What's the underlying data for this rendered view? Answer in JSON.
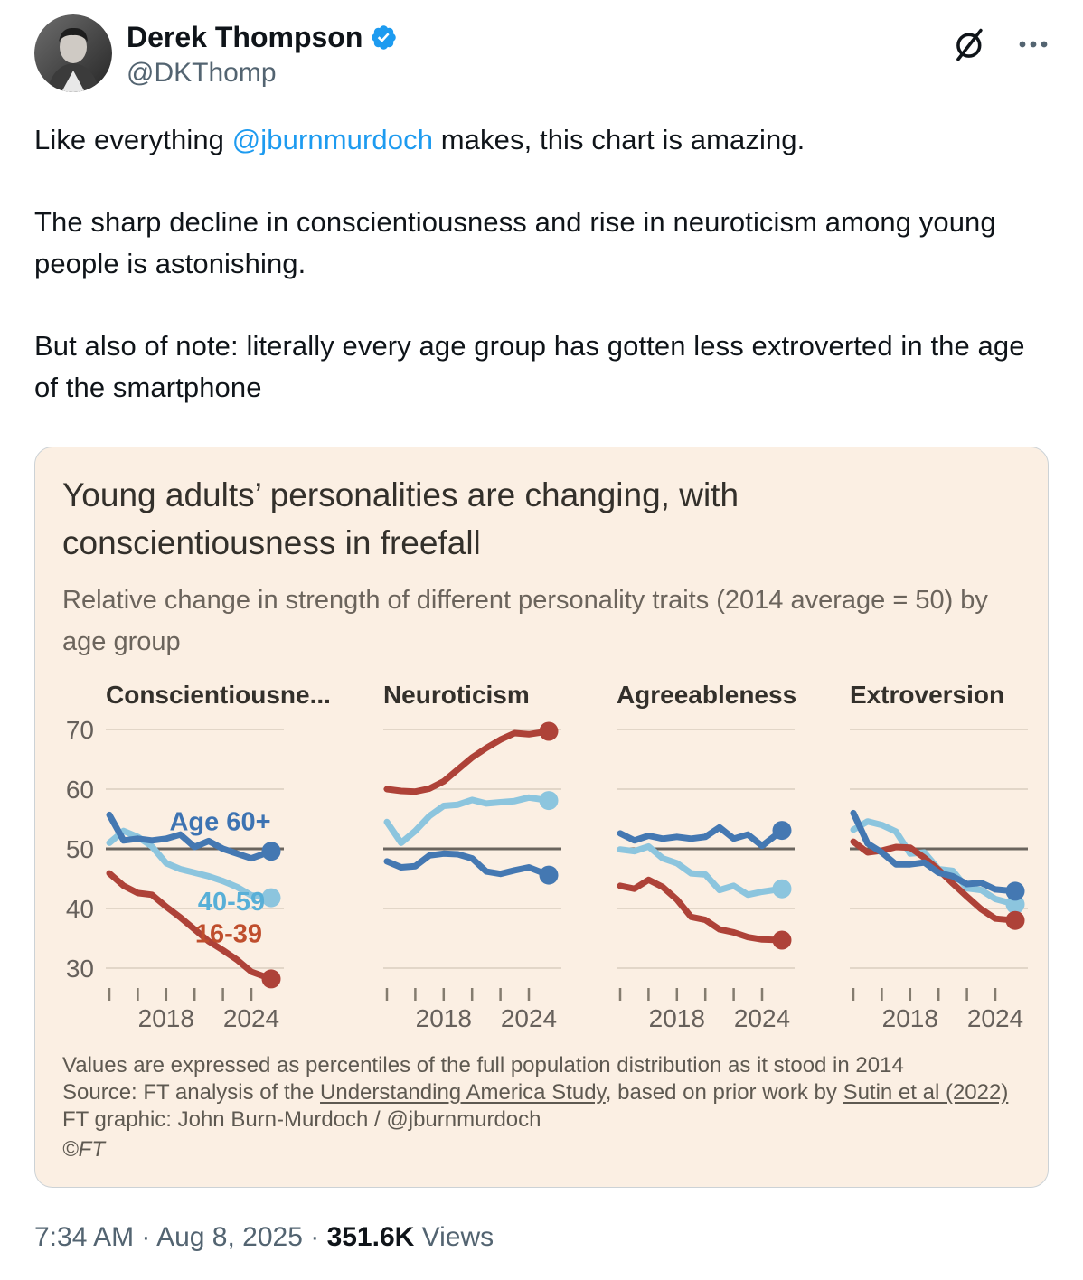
{
  "header": {
    "display_name": "Derek Thompson",
    "handle": "@DKThomp"
  },
  "icons": {
    "verified_badge": "verified-seal",
    "grok": "grok-slashed-circle",
    "more": "ellipsis"
  },
  "tweet": {
    "p1_before": "Like everything ",
    "p1_mention": "@jburnmurdoch",
    "p1_after": " makes, this chart is amazing.",
    "p2": "The sharp decline in conscientiousness and rise in neuroticism among young people is astonishing.",
    "p3": "But also of note: literally every age group has gotten less extroverted in the age of the smartphone"
  },
  "chart": {
    "title": "Young adults’ personalities are changing, with conscientiousness in freefall",
    "subtitle": "Relative change in strength of different personality traits (2014 average = 50) by age group",
    "note": "Values are expressed as percentiles of the full population distribution as it stood in 2014",
    "source_prefix": "Source: FT analysis of the ",
    "source_link1": "Understanding America Study",
    "source_mid": ", based on prior work by ",
    "source_link2": "Sutin et al (2022)",
    "credit": "FT graphic: John Burn-Murdoch / @jburnmurdoch",
    "copyright": "©FT"
  },
  "chart_data": {
    "type": "line",
    "x": [
      2014,
      2015,
      2016,
      2017,
      2018,
      2019,
      2020,
      2021,
      2022,
      2023,
      2024,
      2025.4
    ],
    "x_ticks": [
      2014,
      2016,
      2018,
      2020,
      2022,
      2024
    ],
    "x_tick_labels": [
      {
        "label": "2018",
        "year": 2018
      },
      {
        "label": "2024",
        "year": 2024
      }
    ],
    "y_gridlines": [
      70,
      60,
      50,
      40,
      30
    ],
    "baseline": 50,
    "ylim": [
      27,
      72
    ],
    "legend": {
      "age_60_plus": "Age 60+",
      "age_40_59": "40-59",
      "age_16_39": "16-39"
    },
    "colors": {
      "age_60_plus": "#4478b2",
      "age_40_59": "#8cc5de",
      "age_16_39": "#ae4238"
    },
    "draw_order": [
      "age_40_59",
      "age_16_39",
      "age_60_plus"
    ],
    "style": {
      "grid_color": "#d9cdbf",
      "baseline_color": "#6a645e",
      "tick_color": "#847c6f",
      "axis_text_color": "#66605b",
      "card_bg": "#fbefe3"
    },
    "panels": [
      {
        "title": "Conscientiousne...",
        "show_y_labels": true,
        "labels": [
          {
            "text": "Age 60+",
            "x": 2021.8,
            "y": 54.6,
            "color": "#3d73b2"
          },
          {
            "text": "40-59",
            "x": 2022.6,
            "y": 41.2,
            "color": "#58afd7"
          },
          {
            "text": "16-39",
            "x": 2022.4,
            "y": 35.8,
            "color": "#bf4e2d"
          }
        ],
        "series": {
          "age_60_plus": [
            55.7,
            51.4,
            51.7,
            51.4,
            51.7,
            52.4,
            50.3,
            51.3,
            50.0,
            49.2,
            48.4,
            49.6
          ],
          "age_40_59": [
            51.0,
            53.0,
            52.0,
            50.4,
            47.6,
            46.6,
            46.0,
            45.4,
            44.6,
            43.6,
            42.2,
            41.8
          ],
          "age_16_39": [
            45.9,
            43.8,
            42.6,
            42.3,
            40.3,
            38.5,
            36.5,
            34.5,
            33.0,
            31.4,
            29.4,
            28.2
          ]
        }
      },
      {
        "title": "Neuroticism",
        "show_y_labels": false,
        "labels": [],
        "series": {
          "age_60_plus": [
            47.9,
            46.9,
            47.1,
            48.9,
            49.2,
            49.1,
            48.4,
            46.2,
            45.8,
            46.4,
            46.9,
            45.6
          ],
          "age_40_59": [
            54.5,
            51.0,
            53.0,
            55.5,
            57.2,
            57.4,
            58.2,
            57.6,
            57.8,
            58.0,
            58.6,
            58.1
          ],
          "age_16_39": [
            60.0,
            59.7,
            59.6,
            60.1,
            61.3,
            63.3,
            65.3,
            66.9,
            68.3,
            69.4,
            69.2,
            69.7
          ]
        }
      },
      {
        "title": "Agreeableness",
        "show_y_labels": false,
        "labels": [],
        "series": {
          "age_60_plus": [
            52.6,
            51.4,
            52.2,
            51.7,
            52.0,
            51.7,
            52.0,
            53.6,
            51.7,
            52.4,
            50.5,
            53.1
          ],
          "age_40_59": [
            49.9,
            49.6,
            50.4,
            48.4,
            47.6,
            45.9,
            45.7,
            43.1,
            43.8,
            42.3,
            42.8,
            43.3
          ],
          "age_16_39": [
            43.8,
            43.3,
            44.8,
            43.6,
            41.5,
            38.6,
            38.1,
            36.5,
            36.0,
            35.2,
            34.8,
            34.7
          ]
        }
      },
      {
        "title": "Extroversion",
        "show_y_labels": false,
        "labels": [],
        "series": {
          "age_60_plus": [
            56.0,
            50.9,
            49.4,
            47.4,
            47.4,
            47.7,
            46.0,
            45.4,
            44.1,
            44.3,
            43.2,
            42.9
          ],
          "age_40_59": [
            53.2,
            54.6,
            54.0,
            52.9,
            49.2,
            49.4,
            46.6,
            46.3,
            43.4,
            43.1,
            41.6,
            40.7
          ],
          "age_16_39": [
            51.2,
            49.4,
            49.7,
            50.3,
            50.2,
            48.5,
            46.5,
            44.2,
            42.0,
            39.9,
            38.3,
            38.0
          ]
        }
      }
    ]
  },
  "footer": {
    "datetime": "7:34 AM · Aug 8, 2025",
    "separator": " · ",
    "views_count": "351.6K",
    "views_label": " Views"
  },
  "theme": {
    "accent_blue": "#1d9bf0",
    "text_primary": "#0f1419",
    "text_secondary": "#536471",
    "card_background": "#fbefe3"
  }
}
